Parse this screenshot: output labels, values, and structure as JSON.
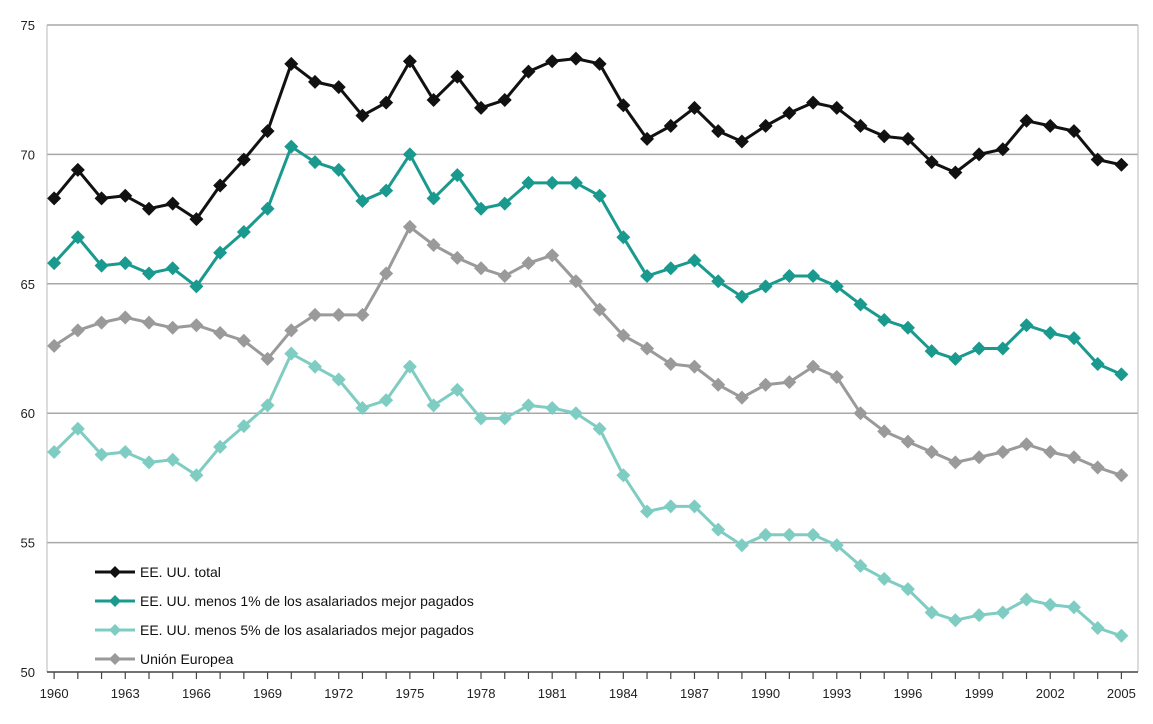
{
  "chart_data": {
    "type": "line",
    "title": "",
    "xlabel": "",
    "ylabel": "",
    "ylim": [
      50,
      75
    ],
    "yticks": [
      50,
      55,
      60,
      65,
      70,
      75
    ],
    "xticks": [
      1960,
      1963,
      1966,
      1969,
      1972,
      1975,
      1978,
      1981,
      1984,
      1987,
      1990,
      1993,
      1996,
      1999,
      2002,
      2005
    ],
    "grid": "horizontal",
    "legend_position": "bottom-left",
    "x": [
      1960,
      1961,
      1962,
      1963,
      1964,
      1965,
      1966,
      1967,
      1968,
      1969,
      1970,
      1971,
      1972,
      1973,
      1974,
      1975,
      1976,
      1977,
      1978,
      1979,
      1980,
      1981,
      1982,
      1983,
      1984,
      1985,
      1986,
      1987,
      1988,
      1989,
      1990,
      1991,
      1992,
      1993,
      1994,
      1995,
      1996,
      1997,
      1998,
      1999,
      2000,
      2001,
      2002,
      2003,
      2004,
      2005
    ],
    "series": [
      {
        "name": "EE. UU. total",
        "color": "#111111",
        "values": [
          68.3,
          69.4,
          68.3,
          68.4,
          67.9,
          68.1,
          67.5,
          68.8,
          69.8,
          70.9,
          73.5,
          72.8,
          72.6,
          71.5,
          72.0,
          73.6,
          72.1,
          73.0,
          71.8,
          72.1,
          73.2,
          73.6,
          73.7,
          73.5,
          71.9,
          70.6,
          71.1,
          71.8,
          70.9,
          70.5,
          71.1,
          71.6,
          72.0,
          71.8,
          71.1,
          70.7,
          70.6,
          69.7,
          69.3,
          70.0,
          70.2,
          71.3,
          71.1,
          70.9,
          69.8,
          69.6
        ]
      },
      {
        "name": "EE. UU. menos 1% de los asalariados mejor pagados",
        "color": "#1a9a8e",
        "values": [
          65.8,
          66.8,
          65.7,
          65.8,
          65.4,
          65.6,
          64.9,
          66.2,
          67.0,
          67.9,
          70.3,
          69.7,
          69.4,
          68.2,
          68.6,
          70.0,
          68.3,
          69.2,
          67.9,
          68.1,
          68.9,
          68.9,
          68.9,
          68.4,
          66.8,
          65.3,
          65.6,
          65.9,
          65.1,
          64.5,
          64.9,
          65.3,
          65.3,
          64.9,
          64.2,
          63.6,
          63.3,
          62.4,
          62.1,
          62.5,
          62.5,
          63.4,
          63.1,
          62.9,
          61.9,
          61.5
        ]
      },
      {
        "name": "EE. UU. menos 5% de los asalariados mejor pagados",
        "color": "#7fcdc2",
        "values": [
          58.5,
          59.4,
          58.4,
          58.5,
          58.1,
          58.2,
          57.6,
          58.7,
          59.5,
          60.3,
          62.3,
          61.8,
          61.3,
          60.2,
          60.5,
          61.8,
          60.3,
          60.9,
          59.8,
          59.8,
          60.3,
          60.2,
          60.0,
          59.4,
          57.6,
          56.2,
          56.4,
          56.4,
          55.5,
          54.9,
          55.3,
          55.3,
          55.3,
          54.9,
          54.1,
          53.6,
          53.2,
          52.3,
          52.0,
          52.2,
          52.3,
          52.8,
          52.6,
          52.5,
          51.7,
          51.4
        ]
      },
      {
        "name": "Unión Europea",
        "color": "#9a9a9a",
        "values": [
          62.6,
          63.2,
          63.5,
          63.7,
          63.5,
          63.3,
          63.4,
          63.1,
          62.8,
          62.1,
          63.2,
          63.8,
          63.8,
          63.8,
          65.4,
          67.2,
          66.5,
          66.0,
          65.6,
          65.3,
          65.8,
          66.1,
          65.1,
          64.0,
          63.0,
          62.5,
          61.9,
          61.8,
          61.1,
          60.6,
          61.1,
          61.2,
          61.8,
          61.4,
          60.0,
          59.3,
          58.9,
          58.5,
          58.1,
          58.3,
          58.5,
          58.8,
          58.5,
          58.3,
          57.9,
          57.6
        ]
      }
    ]
  }
}
